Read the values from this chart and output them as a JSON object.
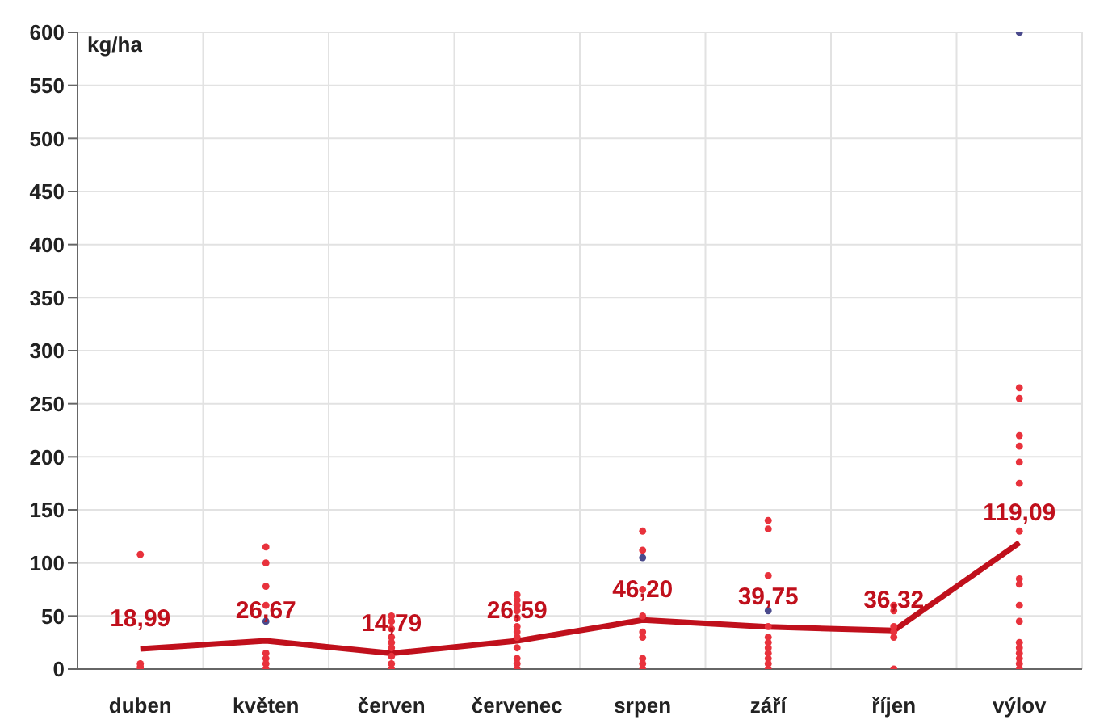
{
  "chart_data": {
    "type": "line",
    "ylabel": "kg/ha",
    "categories": [
      "duben",
      "květen",
      "červen",
      "červenec",
      "srpen",
      "září",
      "říjen",
      "výlov"
    ],
    "ylim": [
      0,
      600
    ],
    "yticks": [
      0,
      50,
      100,
      150,
      200,
      250,
      300,
      350,
      400,
      450,
      500,
      550,
      600
    ],
    "grid": true,
    "legend": false,
    "series": [
      {
        "type": "scatter",
        "color": "#e8323c",
        "marker": "circle",
        "x": [
          "duben",
          "duben",
          "duben",
          "duben",
          "květen",
          "květen",
          "květen",
          "květen",
          "květen",
          "květen",
          "květen",
          "květen",
          "červen",
          "červen",
          "červen",
          "červen",
          "červen",
          "červen",
          "červen",
          "červen",
          "červen",
          "červenec",
          "červenec",
          "červenec",
          "červenec",
          "červenec",
          "červenec",
          "červenec",
          "červenec",
          "červenec",
          "červenec",
          "červenec",
          "červenec",
          "srpen",
          "srpen",
          "srpen",
          "srpen",
          "srpen",
          "srpen",
          "srpen",
          "srpen",
          "srpen",
          "září",
          "září",
          "září",
          "září",
          "září",
          "září",
          "září",
          "září",
          "září",
          "září",
          "září",
          "říjen",
          "říjen",
          "říjen",
          "říjen",
          "říjen",
          "říjen",
          "výlov",
          "výlov",
          "výlov",
          "výlov",
          "výlov",
          "výlov",
          "výlov",
          "výlov",
          "výlov",
          "výlov",
          "výlov",
          "výlov",
          "výlov",
          "výlov",
          "výlov",
          "výlov",
          "výlov"
        ],
        "values": [
          108,
          5,
          2,
          0,
          115,
          100,
          78,
          60,
          15,
          10,
          5,
          0,
          50,
          45,
          38,
          30,
          25,
          20,
          12,
          5,
          0,
          70,
          65,
          60,
          55,
          48,
          40,
          35,
          30,
          20,
          10,
          5,
          0,
          130,
          112,
          75,
          50,
          35,
          30,
          10,
          5,
          0,
          140,
          132,
          88,
          40,
          30,
          25,
          20,
          15,
          10,
          5,
          0,
          60,
          55,
          40,
          35,
          30,
          0,
          265,
          255,
          220,
          210,
          195,
          175,
          130,
          85,
          80,
          60,
          45,
          25,
          20,
          15,
          10,
          5,
          0
        ]
      },
      {
        "type": "scatter",
        "color": "#4a4a8c",
        "marker": "circle",
        "x": [
          "květen",
          "srpen",
          "září",
          "výlov"
        ],
        "values": [
          45,
          105,
          55,
          600
        ]
      },
      {
        "color": "#c0101c",
        "marker": "none",
        "line_style": "solid",
        "values": [
          18.99,
          26.67,
          14.79,
          26.59,
          46.2,
          39.75,
          36.32,
          119.09
        ],
        "value_labels": [
          "18,99",
          "26,67",
          "14,79",
          "26,59",
          "46,20",
          "39,75",
          "36,32",
          "119,09"
        ]
      }
    ]
  }
}
